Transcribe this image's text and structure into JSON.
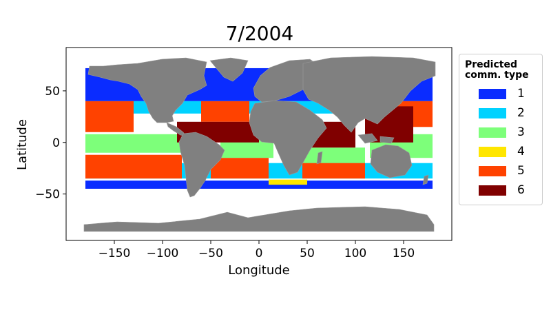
{
  "title": "7/2004",
  "xlabel": "Longitude",
  "ylabel": "Latitude",
  "legend": {
    "title": "Predicted\ncomm. type",
    "entries": [
      {
        "label": "1",
        "color": "#0a2cff"
      },
      {
        "label": "2",
        "color": "#00d2ff"
      },
      {
        "label": "3",
        "color": "#7dff7a"
      },
      {
        "label": "4",
        "color": "#ffe600"
      },
      {
        "label": "5",
        "color": "#ff4200"
      },
      {
        "label": "6",
        "color": "#800000"
      }
    ]
  },
  "colors": {
    "land": "#808080",
    "land_borders": "#9a9a9a"
  },
  "chart_data": {
    "type": "scatter",
    "title": "7/2004",
    "xlabel": "Longitude",
    "ylabel": "Latitude",
    "xlim": [
      -200,
      200
    ],
    "ylim": [
      -95,
      92
    ],
    "xticks": [
      -150,
      -100,
      -50,
      0,
      50,
      100,
      150
    ],
    "xtick_labels": [
      "−150",
      "−100",
      "−50",
      "0",
      "50",
      "100",
      "150"
    ],
    "yticks": [
      -50,
      0,
      50
    ],
    "ytick_labels": [
      "−50",
      "0",
      "50"
    ],
    "legend_placement": "outside right",
    "series": [
      {
        "name": "1",
        "regions": [
          {
            "lon": [
              -180,
              180
            ],
            "lat": [
              40,
              72
            ]
          },
          {
            "lon": [
              -180,
              180
            ],
            "lat": [
              -47,
              -37
            ]
          }
        ]
      },
      {
        "name": "2",
        "regions": [
          {
            "lon": [
              -180,
              180
            ],
            "lat": [
              28,
              40
            ]
          },
          {
            "lon": [
              -180,
              180
            ],
            "lat": [
              -35,
              -20
            ]
          }
        ]
      },
      {
        "name": "3",
        "regions": [
          {
            "lon": [
              -180,
              -80
            ],
            "lat": [
              -10,
              8
            ]
          },
          {
            "lon": [
              -40,
              15
            ],
            "lat": [
              -15,
              5
            ]
          },
          {
            "lon": [
              40,
              110
            ],
            "lat": [
              -20,
              -5
            ]
          },
          {
            "lon": [
              115,
              180
            ],
            "lat": [
              -15,
              8
            ]
          }
        ]
      },
      {
        "name": "4",
        "regions": [
          {
            "lon": [
              10,
              50
            ],
            "lat": [
              -41,
              -36
            ]
          }
        ]
      },
      {
        "name": "5",
        "regions": [
          {
            "lon": [
              -180,
              -80
            ],
            "lat": [
              -35,
              -12
            ]
          },
          {
            "lon": [
              -50,
              10
            ],
            "lat": [
              -35,
              -15
            ]
          },
          {
            "lon": [
              45,
              110
            ],
            "lat": [
              -35,
              -20
            ]
          },
          {
            "lon": [
              -180,
              -130
            ],
            "lat": [
              10,
              40
            ]
          },
          {
            "lon": [
              -60,
              -10
            ],
            "lat": [
              20,
              40
            ]
          },
          {
            "lon": [
              130,
              180
            ],
            "lat": [
              15,
              40
            ]
          }
        ]
      },
      {
        "name": "6",
        "regions": [
          {
            "lon": [
              -85,
              0
            ],
            "lat": [
              0,
              20
            ]
          },
          {
            "lon": [
              50,
              100
            ],
            "lat": [
              -5,
              20
            ]
          },
          {
            "lon": [
              110,
              160
            ],
            "lat": [
              0,
              35
            ]
          }
        ]
      }
    ]
  }
}
